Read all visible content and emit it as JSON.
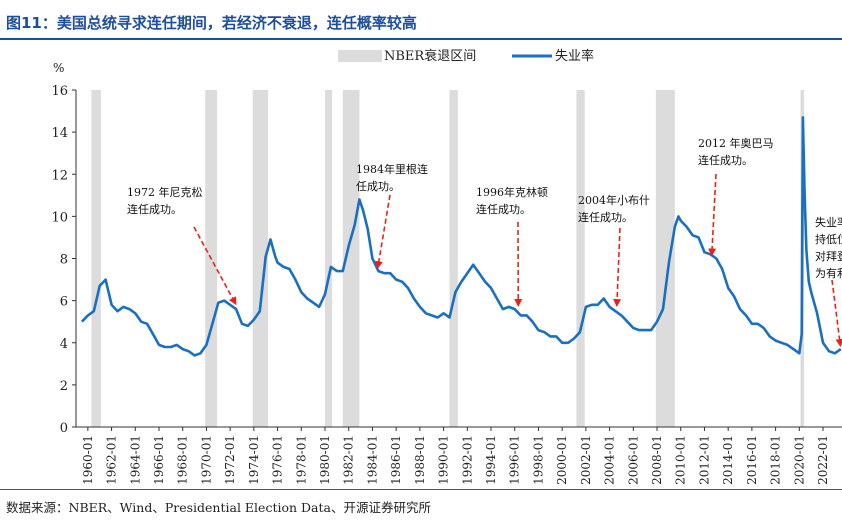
{
  "figure": {
    "title": "图11：美国总统寻求连任期间，若经济不衰退，连任概率较高",
    "source": "数据来源：NBER、Wind、Presidential Election Data、开源证券研究所"
  },
  "chart_data": {
    "type": "line",
    "title": "美国总统寻求连任期间，若经济不衰退，连任概率较高",
    "ylabel": "%",
    "xlabel": "",
    "ylim": [
      0,
      16
    ],
    "yticks": [
      "0",
      "2",
      "4",
      "6",
      "8",
      "10",
      "12",
      "14",
      "16"
    ],
    "xlim": [
      1959.0,
      2023.6
    ],
    "xticks": [
      "1960-01",
      "1962-01",
      "1964-01",
      "1966-01",
      "1968-01",
      "1970-01",
      "1972-01",
      "1974-01",
      "1976-01",
      "1978-01",
      "1980-01",
      "1982-01",
      "1984-01",
      "1986-01",
      "1988-01",
      "1990-01",
      "1992-01",
      "1994-01",
      "1996-01",
      "1998-01",
      "2000-01",
      "2002-01",
      "2004-01",
      "2006-01",
      "2008-01",
      "2010-01",
      "2012-01",
      "2014-01",
      "2016-01",
      "2018-01",
      "2020-01",
      "2022-01"
    ],
    "legend": {
      "position": "top-center",
      "recession_label": "NBER衰退区间",
      "series_label": "失业率"
    },
    "colors": {
      "line": "#1a6fc2",
      "recession": "#dcdcdc",
      "arrow": "#e8221b",
      "title": "#1f4e9a"
    },
    "recessions": [
      [
        1960.3,
        1961.1
      ],
      [
        1969.9,
        1970.9
      ],
      [
        1973.9,
        1975.2
      ],
      [
        1980.0,
        1980.6
      ],
      [
        1981.5,
        1982.9
      ],
      [
        1990.5,
        1991.2
      ],
      [
        2001.2,
        2001.9
      ],
      [
        2007.9,
        2009.5
      ],
      [
        2020.1,
        2020.4
      ]
    ],
    "series": [
      {
        "name": "失业率",
        "x": [
          1959.5,
          1960.0,
          1960.5,
          1961.0,
          1961.5,
          1962.0,
          1962.5,
          1963.0,
          1963.5,
          1964.0,
          1964.5,
          1965.0,
          1965.5,
          1966.0,
          1966.5,
          1967.0,
          1967.5,
          1968.0,
          1968.5,
          1969.0,
          1969.5,
          1970.0,
          1970.5,
          1971.0,
          1971.5,
          1972.0,
          1972.5,
          1973.0,
          1973.5,
          1974.0,
          1974.5,
          1975.0,
          1975.4,
          1975.8,
          1976.0,
          1976.5,
          1977.0,
          1977.5,
          1978.0,
          1978.5,
          1979.0,
          1979.5,
          1980.0,
          1980.5,
          1981.0,
          1981.5,
          1982.0,
          1982.5,
          1982.9,
          1983.2,
          1983.6,
          1984.0,
          1984.5,
          1985.0,
          1985.5,
          1986.0,
          1986.5,
          1987.0,
          1987.5,
          1988.0,
          1988.5,
          1989.0,
          1989.5,
          1990.0,
          1990.5,
          1991.0,
          1991.5,
          1992.0,
          1992.5,
          1993.0,
          1993.5,
          1994.0,
          1994.5,
          1995.0,
          1995.5,
          1996.0,
          1996.5,
          1997.0,
          1997.5,
          1998.0,
          1998.5,
          1999.0,
          1999.5,
          2000.0,
          2000.5,
          2001.0,
          2001.5,
          2002.0,
          2002.5,
          2003.0,
          2003.5,
          2004.0,
          2004.5,
          2005.0,
          2005.5,
          2006.0,
          2006.5,
          2007.0,
          2007.5,
          2008.0,
          2008.5,
          2009.0,
          2009.5,
          2009.8,
          2010.0,
          2010.5,
          2011.0,
          2011.5,
          2012.0,
          2012.5,
          2013.0,
          2013.5,
          2014.0,
          2014.5,
          2015.0,
          2015.5,
          2016.0,
          2016.5,
          2017.0,
          2017.5,
          2018.0,
          2018.5,
          2019.0,
          2019.5,
          2020.0,
          2020.2,
          2020.3,
          2020.45,
          2020.6,
          2020.8,
          2021.0,
          2021.5,
          2022.0,
          2022.5,
          2023.0,
          2023.5
        ],
        "values": [
          5.0,
          5.3,
          5.5,
          6.7,
          7.0,
          5.8,
          5.5,
          5.7,
          5.6,
          5.4,
          5.0,
          4.9,
          4.4,
          3.9,
          3.8,
          3.8,
          3.9,
          3.7,
          3.6,
          3.4,
          3.5,
          3.9,
          4.9,
          5.9,
          6.0,
          5.8,
          5.6,
          4.9,
          4.8,
          5.1,
          5.5,
          8.1,
          8.9,
          8.1,
          7.8,
          7.6,
          7.5,
          7.0,
          6.4,
          6.1,
          5.9,
          5.7,
          6.3,
          7.6,
          7.4,
          7.4,
          8.6,
          9.6,
          10.8,
          10.3,
          9.4,
          8.0,
          7.4,
          7.3,
          7.3,
          7.0,
          6.9,
          6.6,
          6.1,
          5.7,
          5.4,
          5.3,
          5.2,
          5.4,
          5.2,
          6.4,
          6.9,
          7.3,
          7.7,
          7.3,
          6.9,
          6.6,
          6.1,
          5.6,
          5.7,
          5.6,
          5.3,
          5.3,
          5.0,
          4.6,
          4.5,
          4.3,
          4.3,
          4.0,
          4.0,
          4.2,
          4.5,
          5.7,
          5.8,
          5.8,
          6.1,
          5.7,
          5.5,
          5.3,
          5.0,
          4.7,
          4.6,
          4.6,
          4.6,
          5.0,
          5.6,
          7.8,
          9.5,
          10.0,
          9.8,
          9.5,
          9.1,
          9.0,
          8.3,
          8.2,
          8.0,
          7.5,
          6.6,
          6.2,
          5.6,
          5.3,
          4.9,
          4.9,
          4.7,
          4.3,
          4.1,
          4.0,
          3.9,
          3.7,
          3.5,
          4.4,
          14.7,
          11.1,
          8.4,
          6.9,
          6.4,
          5.4,
          4.0,
          3.6,
          3.5,
          3.7
        ]
      }
    ],
    "annotations": [
      {
        "text": [
          "1972 年尼克松",
          "连任成功。"
        ],
        "target": [
          1972.6,
          5.7
        ]
      },
      {
        "text": [
          "1984年里根连",
          "任成功。"
        ],
        "target": [
          1984.4,
          7.4
        ]
      },
      {
        "text": [
          "1996年克林顿",
          "连任成功。"
        ],
        "target": [
          1996.3,
          5.6
        ]
      },
      {
        "text": [
          "2004年小布什",
          "连任成功。"
        ],
        "target": [
          2004.6,
          5.6
        ]
      },
      {
        "text": [
          "2012 年奥巴马",
          "连任成功。"
        ],
        "target": [
          2012.6,
          8.0
        ]
      },
      {
        "text": [
          "失业率",
          "持低位",
          "对拜登",
          "为有利"
        ],
        "target": [
          2023.5,
          3.7
        ]
      }
    ]
  }
}
